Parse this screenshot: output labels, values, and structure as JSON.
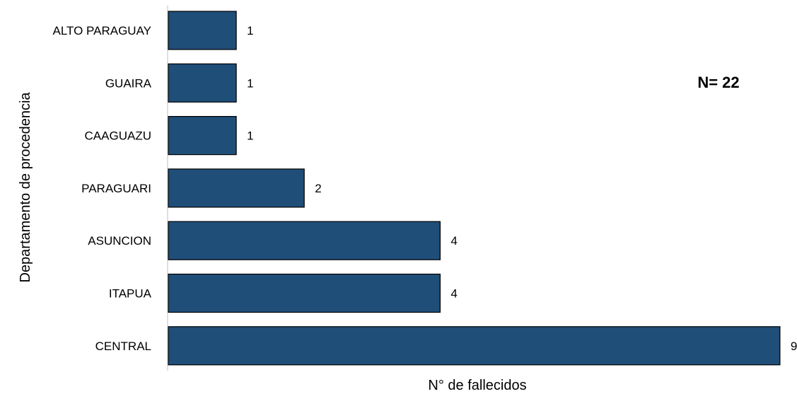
{
  "chart_data": {
    "type": "bar",
    "orientation": "horizontal",
    "categories": [
      "ALTO PARAGUAY",
      "GUAIRA",
      "CAAGUAZU",
      "PARAGUARI",
      "ASUNCION",
      "ITAPUA",
      "CENTRAL"
    ],
    "values": [
      1,
      1,
      1,
      2,
      4,
      4,
      9
    ],
    "xlabel": "N° de fallecidos",
    "ylabel": "Departamento de procedencia",
    "annotation": "N= 22",
    "xlim": [
      0,
      9
    ],
    "grid": false,
    "legend": "none",
    "colors": {
      "bar_fill": "#1f4e79",
      "bar_stroke": "#000000",
      "axis": "#bfbfbf"
    }
  }
}
